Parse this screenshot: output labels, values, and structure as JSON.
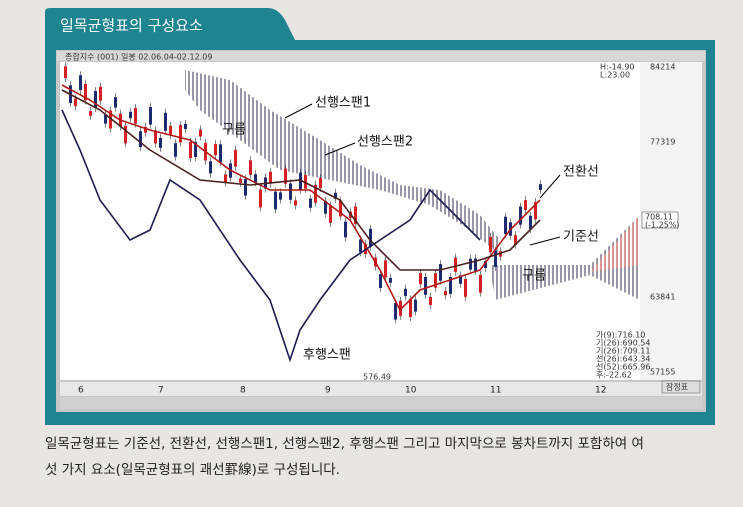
{
  "figure": {
    "title": "일목균형표의 구성요소",
    "window_title": "종합지수 (001) 일봉 02.06.04-02.12.09",
    "header_info": [
      "H:-14.90",
      "L:23.00",
      "84214"
    ],
    "axis_labels": [
      "77319",
      "63841",
      "57155"
    ],
    "months": [
      "6",
      "7",
      "8",
      "9",
      "10",
      "11",
      "12"
    ],
    "annotations": {
      "span1": "선행스팬1",
      "cloud_top": "구름",
      "span2": "선행스팬2",
      "conversion": "전환선",
      "base": "기준선",
      "cloud_bottom": "구름",
      "lagging": "후행스팬"
    },
    "price_tag": [
      "708.11",
      "(-1.25%)"
    ],
    "legend": [
      "가(9):716.10",
      "기(26):690.54",
      "기(26):709.11",
      "선(26):643.34",
      "선(52):665.96",
      "후:-22.62"
    ],
    "low_marker": "576.49",
    "button": "잠정표"
  },
  "caption": [
    "일목균형표는 기준선, 전환선, 선행스팬1, 선행스팬2, 후행스팬 그리고 마지막으로 봉차트까지 포함하여 여",
    "섯 가지 요소(일목균형표의 괘선罫線)로 구성됩니다."
  ]
}
